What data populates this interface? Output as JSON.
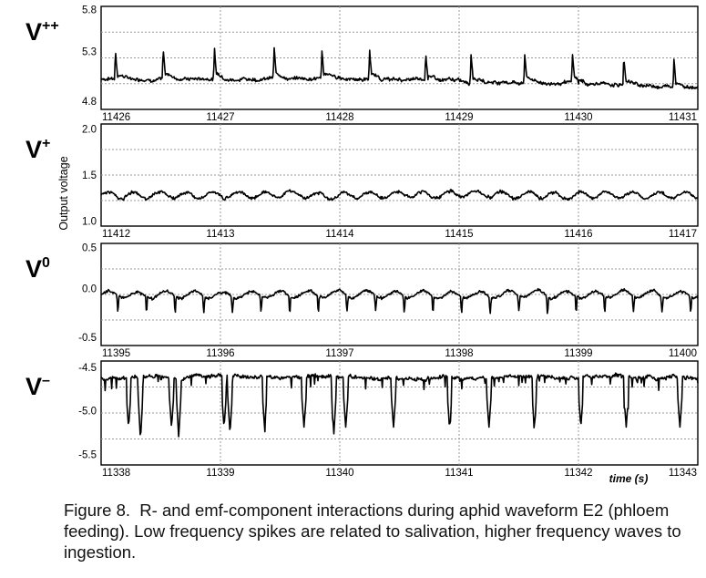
{
  "figure": {
    "ylabel": "Output voltage",
    "time_label": "time (s)",
    "caption": "Figure 8.  R- and emf-component interactions during aphid waveform E2 (phloem feeding). Low frequency spikes are related to salivation, higher frequency waves to ingestion."
  },
  "chart_data": [
    {
      "type": "line",
      "panel_label": "V++",
      "label_base": "V",
      "label_sup": "++",
      "y_ticks": [
        "5.8",
        "5.3",
        "4.8"
      ],
      "ylim": [
        4.8,
        5.8
      ],
      "x_ticks": [
        "11426",
        "11427",
        "11428",
        "11429",
        "11430",
        "11431"
      ],
      "xlim": [
        11426,
        11431
      ],
      "grid": true,
      "series": [
        {
          "baseline": 5.09,
          "noise": 0.025,
          "spike_times": [
            11426.12,
            11426.52,
            11426.95,
            11427.45,
            11427.85,
            11428.25,
            11428.72,
            11429.1,
            11429.55,
            11429.95,
            11430.38,
            11430.8
          ],
          "spike_height": 0.28,
          "trend": [
            [
              11426,
              5.1
            ],
            [
              11428,
              5.1
            ],
            [
              11430,
              5.05
            ],
            [
              11431,
              5.02
            ]
          ]
        }
      ]
    },
    {
      "type": "line",
      "panel_label": "V+",
      "label_base": "V",
      "label_sup": "+",
      "y_ticks": [
        "2.0",
        "1.5",
        "1.0"
      ],
      "ylim": [
        0.95,
        2.0
      ],
      "x_ticks": [
        "11412",
        "11413",
        "11414",
        "11415",
        "11416",
        "11417"
      ],
      "xlim": [
        11412,
        11417
      ],
      "grid": true,
      "series": [
        {
          "baseline": 1.27,
          "noise": 0.018,
          "wave_period": 0.22,
          "wave_amp": 0.035
        }
      ]
    },
    {
      "type": "line",
      "panel_label": "V0",
      "label_base": "V",
      "label_sup": "0",
      "y_ticks": [
        "0.5",
        "0.0",
        "-0.5"
      ],
      "ylim": [
        -0.6,
        0.5
      ],
      "x_ticks": [
        "11395",
        "11396",
        "11397",
        "11398",
        "11399",
        "11400"
      ],
      "xlim": [
        11395,
        11400
      ],
      "grid": true,
      "series": [
        {
          "baseline": -0.05,
          "noise": 0.015,
          "wave_period": 0.24,
          "wave_amp": 0.04,
          "dip_depth": 0.17
        }
      ]
    },
    {
      "type": "line",
      "panel_label": "V−",
      "label_base": "V",
      "label_sup": "–",
      "y_ticks": [
        "-4.5",
        "-5.0",
        "-5.5"
      ],
      "ylim": [
        -5.55,
        -4.45
      ],
      "x_ticks": [
        "11338",
        "11339",
        "11340",
        "11341",
        "11342",
        "11343"
      ],
      "xlim": [
        11338,
        11343
      ],
      "grid": true,
      "series": [
        {
          "baseline": -4.62,
          "noise": 0.03,
          "dip_times": [
            11338.23,
            11338.59,
            11339.03,
            11339.37,
            11339.7,
            11340.05,
            11340.45,
            11340.92,
            11341.25,
            11341.63,
            11342.02,
            11342.4,
            11342.85
          ],
          "dip_to": -5.15,
          "deep_dips": [
            [
              11338.33,
              -5.28
            ],
            [
              11338.65,
              -5.25
            ],
            [
              11339.08,
              -5.22
            ],
            [
              11339.95,
              -5.22
            ]
          ]
        }
      ]
    }
  ]
}
